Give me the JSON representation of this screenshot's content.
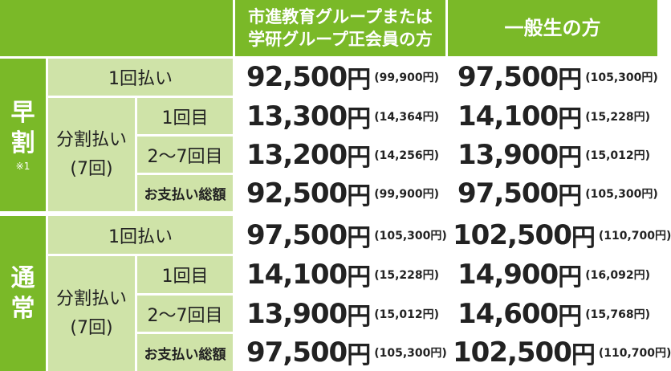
{
  "header": {
    "col_member": [
      "市進教育グループまたは",
      "学研グループ正会員の方"
    ],
    "col_general": "一般生の方"
  },
  "sections": [
    {
      "name": "早割",
      "chars": [
        "早",
        "割"
      ],
      "note": "※1",
      "lump_label": "1回払い",
      "lump": {
        "member": "92,500",
        "member_tax": "(99,900円)",
        "general": "97,500",
        "general_tax": "(105,300円)"
      },
      "installment_label": [
        "分割払い",
        "(7回)"
      ],
      "installments": [
        {
          "label": "1回目",
          "member": "13,300",
          "member_tax": "(14,364円)",
          "general": "14,100",
          "general_tax": "(15,228円)"
        },
        {
          "label": "2〜7回目",
          "member": "13,200",
          "member_tax": "(14,256円)",
          "general": "13,900",
          "general_tax": "(15,012円)"
        },
        {
          "label": "お支払い総額",
          "member": "92,500",
          "member_tax": "(99,900円)",
          "general": "97,500",
          "general_tax": "(105,300円)"
        }
      ]
    },
    {
      "name": "通常",
      "chars": [
        "通",
        "常"
      ],
      "note": "",
      "lump_label": "1回払い",
      "lump": {
        "member": "97,500",
        "member_tax": "(105,300円)",
        "general": "102,500",
        "general_tax": "(110,700円)"
      },
      "installment_label": [
        "分割払い",
        "(7回)"
      ],
      "installments": [
        {
          "label": "1回目",
          "member": "14,100",
          "member_tax": "(15,228円)",
          "general": "14,900",
          "general_tax": "(16,092円)"
        },
        {
          "label": "2〜7回目",
          "member": "13,900",
          "member_tax": "(15,012円)",
          "general": "14,600",
          "general_tax": "(15,768円)"
        },
        {
          "label": "お支払い総額",
          "member": "97,500",
          "member_tax": "(105,300円)",
          "general": "102,500",
          "general_tax": "(110,700円)"
        }
      ]
    }
  ],
  "yen": "円",
  "colors": {
    "header_green": "#7ab928",
    "label_green": "#cfe3a8",
    "text": "#222222",
    "grid": "#ffffff"
  }
}
